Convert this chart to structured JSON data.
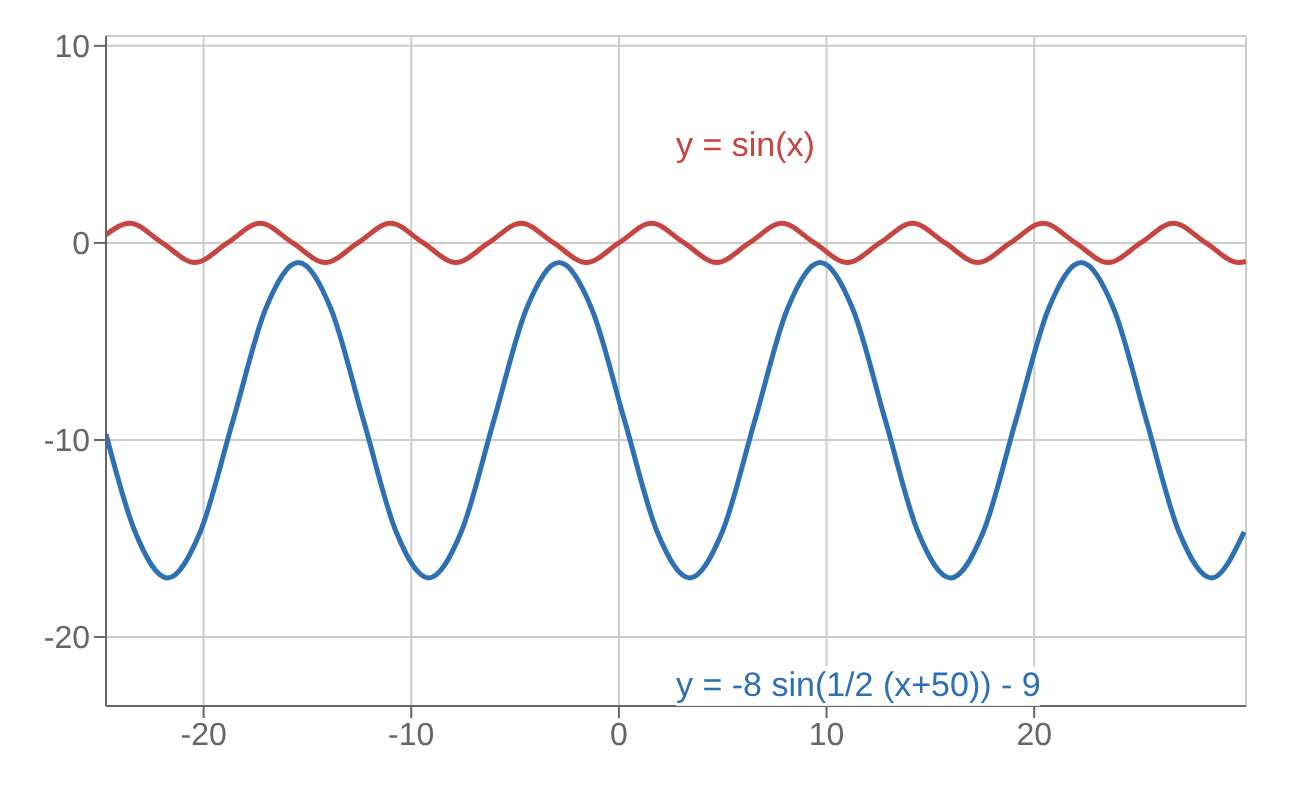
{
  "chart_data": {
    "type": "line",
    "xlim": [
      -24.7,
      30.2
    ],
    "ylim": [
      -23.5,
      10.5
    ],
    "xticks": [
      -20,
      -10,
      0,
      10,
      20
    ],
    "yticks": [
      -20,
      -10,
      0,
      10
    ],
    "grid": true,
    "legend": false,
    "marker": "none",
    "line_style": "solid",
    "series": [
      {
        "name": "y = sin(x)",
        "color": "#c74440",
        "x": [
          -24.7,
          -23.56,
          -21.99,
          -20.42,
          -18.85,
          -17.28,
          -15.71,
          -14.14,
          -12.57,
          -11.0,
          -9.42,
          -7.85,
          -6.28,
          -4.71,
          -3.14,
          -1.57,
          0,
          1.57,
          3.14,
          4.71,
          6.28,
          7.85,
          9.42,
          11.0,
          12.57,
          14.14,
          15.71,
          17.28,
          18.85,
          20.42,
          21.99,
          23.56,
          25.13,
          26.7,
          28.27,
          29.85,
          30.2
        ],
        "values": [
          0.42,
          1,
          0,
          -1,
          0,
          1,
          0,
          -1,
          0,
          1,
          0,
          -1,
          0,
          1,
          0,
          -1,
          0,
          1,
          0,
          -1,
          0,
          1,
          0,
          -1,
          0,
          1,
          0,
          -1,
          0,
          1,
          0,
          -1,
          0,
          1,
          0,
          -1,
          -0.94
        ]
      },
      {
        "name": "y = -8 sin(1/2 (x+50)) - 9",
        "color": "#2d70b3",
        "x": [
          -24.7,
          -23.3,
          -21.73,
          -20.16,
          -18.58,
          -17.01,
          -15.44,
          -13.87,
          -12.3,
          -10.73,
          -9.16,
          -7.59,
          -6.02,
          -4.45,
          -2.88,
          -1.31,
          0.27,
          1.84,
          3.41,
          4.98,
          6.55,
          8.12,
          9.69,
          11.26,
          12.83,
          14.4,
          15.97,
          17.55,
          19.12,
          20.69,
          22.26,
          23.83,
          25.4,
          26.97,
          28.54,
          30.11
        ],
        "values": [
          -9.7,
          -14.66,
          -17,
          -14.66,
          -9,
          -3.34,
          -1,
          -3.34,
          -9,
          -14.66,
          -17,
          -14.66,
          -9,
          -3.34,
          -1,
          -3.34,
          -9,
          -14.66,
          -17,
          -14.66,
          -9,
          -3.34,
          -1,
          -3.34,
          -9,
          -14.66,
          -17,
          -14.66,
          -9,
          -3.34,
          -1,
          -3.34,
          -9,
          -14.66,
          -17,
          -14.66
        ]
      }
    ]
  }
}
